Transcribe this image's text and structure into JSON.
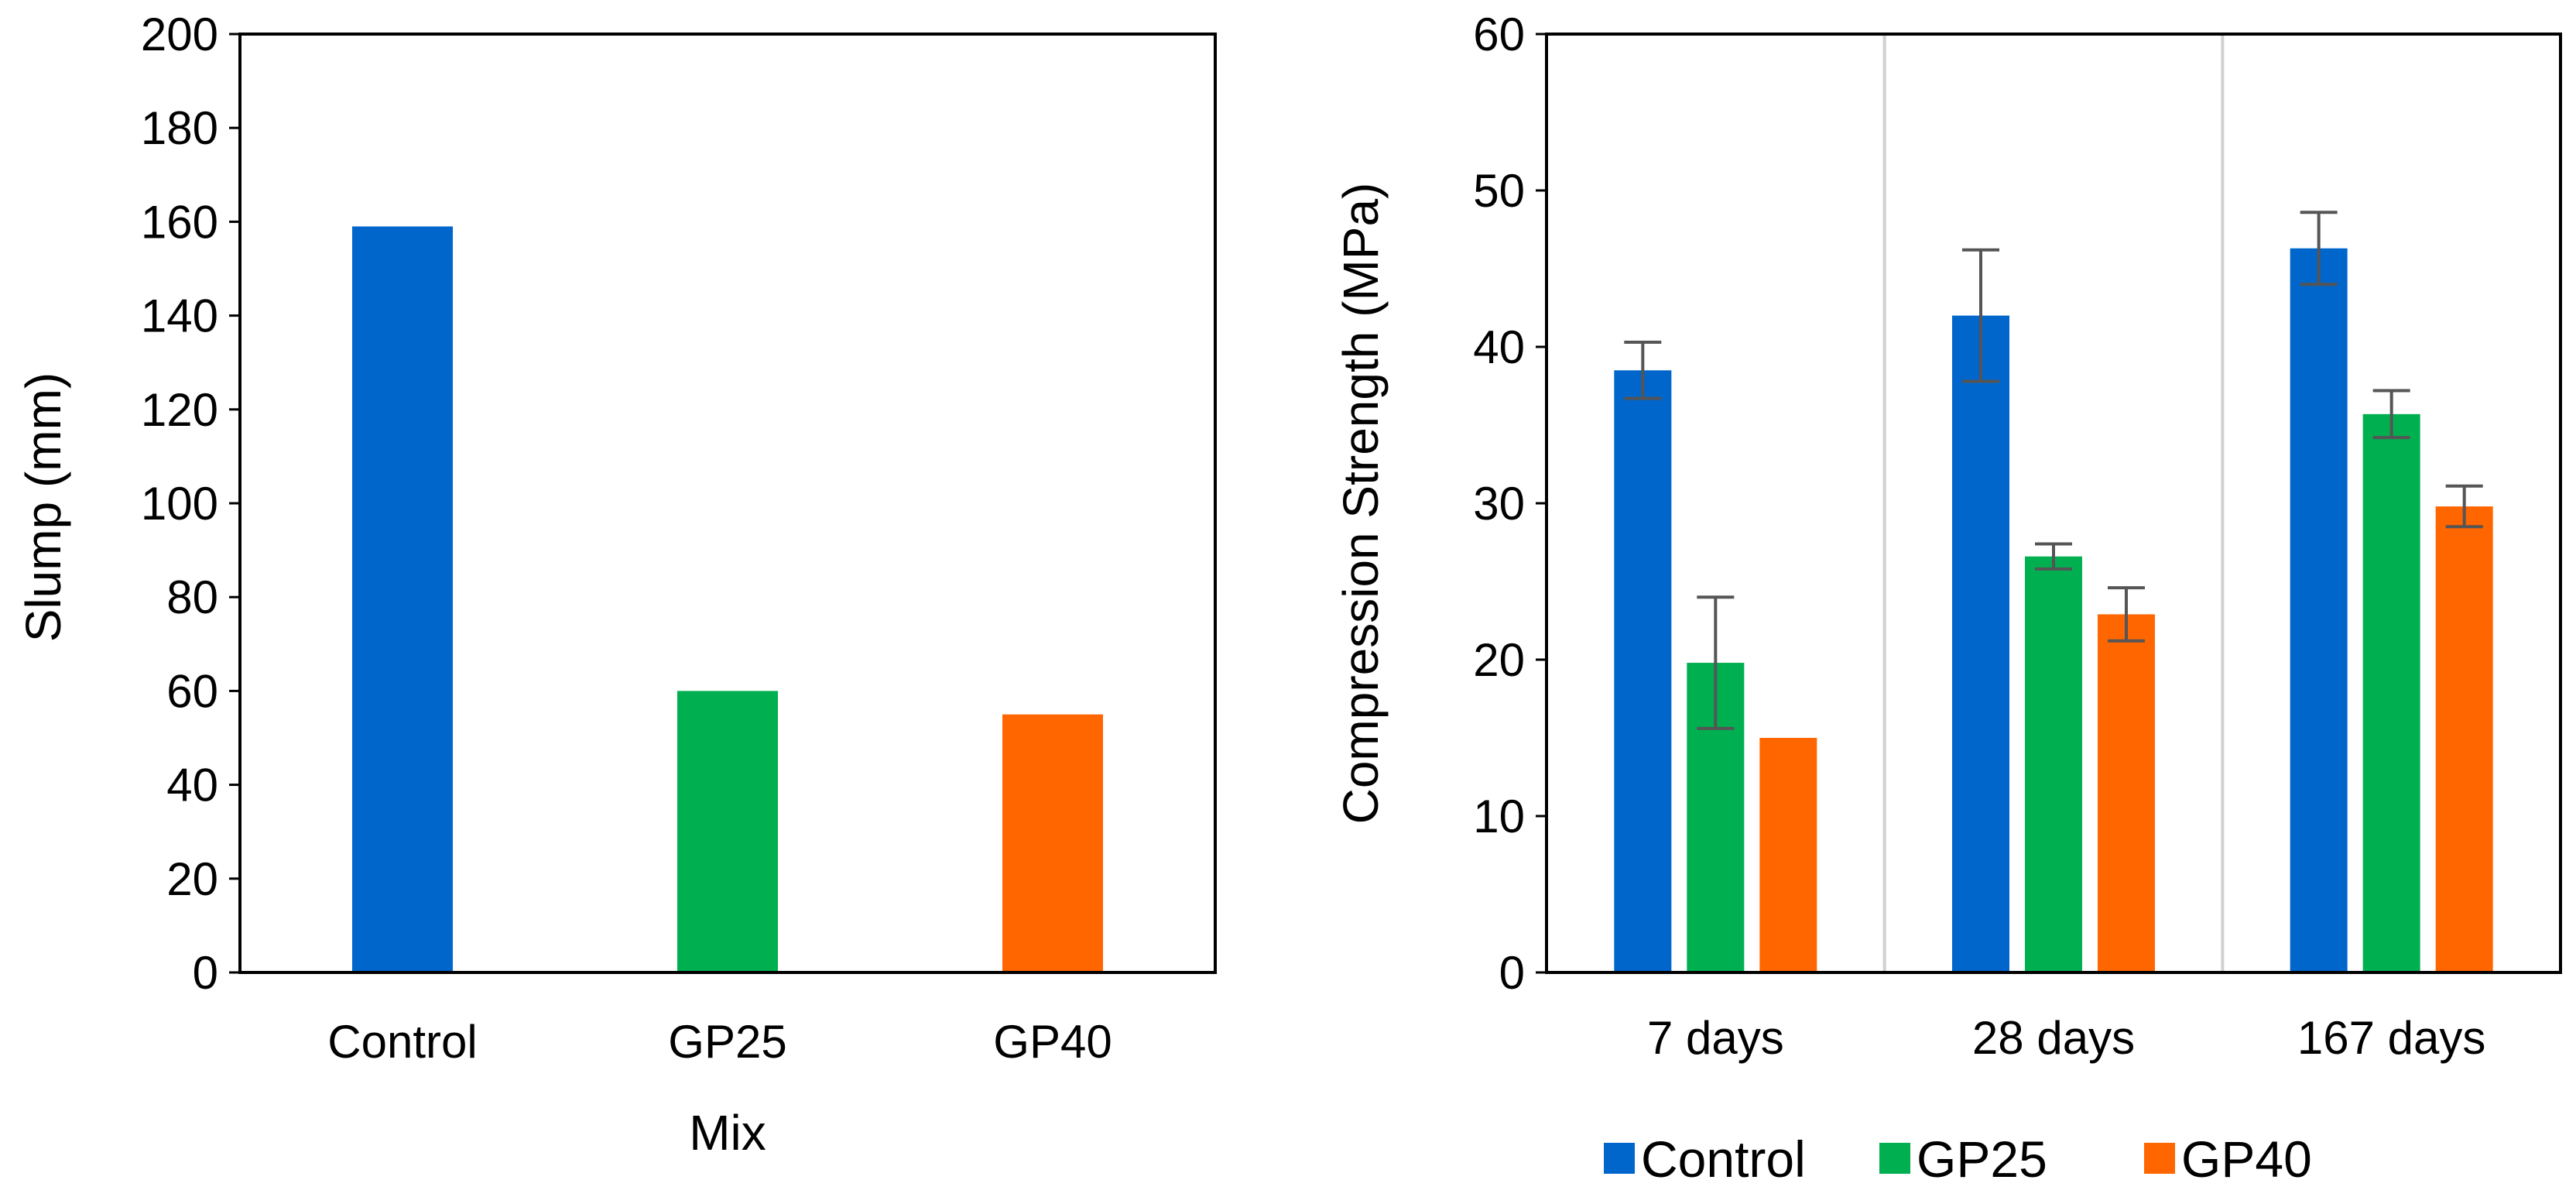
{
  "chart_data": [
    {
      "type": "bar",
      "title": "",
      "xlabel": "Mix",
      "ylabel": "Slump (mm)",
      "categories": [
        "Control",
        "GP25",
        "GP40"
      ],
      "values": [
        159,
        60,
        55
      ],
      "colors": [
        "#0066cc",
        "#00b050",
        "#ff6600"
      ],
      "ylim": [
        0,
        200
      ],
      "yticks": [
        "0",
        "20",
        "40",
        "60",
        "80",
        "100",
        "120",
        "140",
        "160",
        "180",
        "200"
      ],
      "grid": false,
      "legend": "none"
    },
    {
      "type": "bar",
      "title": "",
      "xlabel": "",
      "ylabel": "Compression Strength (MPa)",
      "categories": [
        "7 days",
        "28 days",
        "167 days"
      ],
      "series": [
        {
          "name": "Control",
          "color": "#0066cc",
          "values": [
            38.5,
            42.0,
            46.3
          ],
          "errors": [
            1.8,
            4.2,
            2.3
          ]
        },
        {
          "name": "GP25",
          "color": "#00b050",
          "values": [
            19.8,
            26.6,
            35.7
          ],
          "errors": [
            4.2,
            0.8,
            1.5
          ]
        },
        {
          "name": "GP40",
          "color": "#ff6600",
          "values": [
            15.0,
            22.9,
            29.8
          ],
          "errors": [
            0,
            1.7,
            1.3
          ]
        }
      ],
      "ylim": [
        0,
        60
      ],
      "yticks": [
        "0",
        "10",
        "20",
        "30",
        "40",
        "50",
        "60"
      ],
      "grid": false,
      "category_separators": true,
      "legend": "bottom"
    }
  ]
}
